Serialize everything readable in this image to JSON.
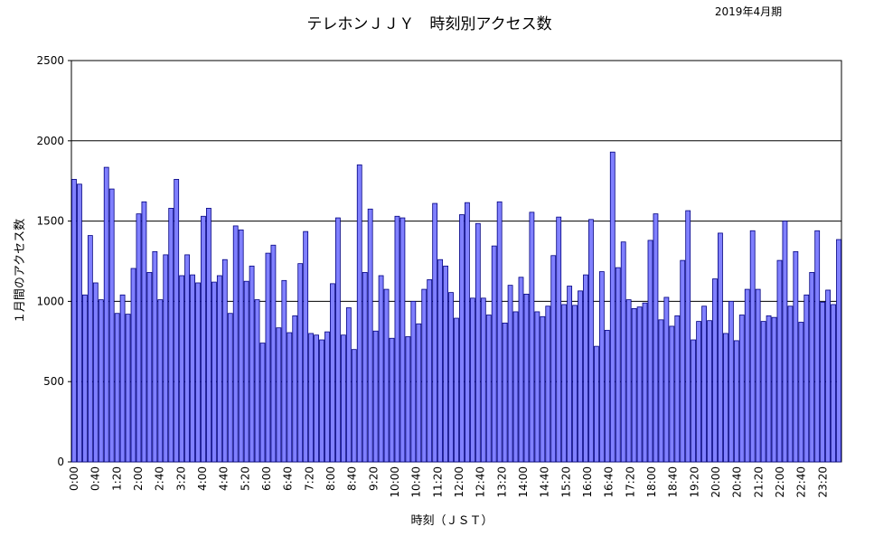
{
  "chart_data": {
    "type": "bar",
    "title": "テレホンＪＪＹ　時刻別アクセス数",
    "subtitle": "2019年4月期",
    "xlabel": "時刻（ＪＳＴ）",
    "ylabel": "１月間のアクセス数",
    "ylim": [
      0,
      2500
    ],
    "y_ticks": [
      "0",
      "500",
      "1000",
      "1500",
      "2000",
      "2500"
    ],
    "gridlines": "horizontal",
    "bar_color": "#8080ff",
    "bar_border_color": "#000080",
    "interval_minutes": 10,
    "x_tick_labels": [
      "0:00",
      "0:40",
      "1:20",
      "2:00",
      "2:40",
      "3:20",
      "4:00",
      "4:40",
      "5:20",
      "6:00",
      "6:40",
      "7:20",
      "8:00",
      "8:40",
      "9:20",
      "10:00",
      "10:40",
      "11:20",
      "12:00",
      "12:40",
      "13:20",
      "14:00",
      "14:40",
      "15:20",
      "16:00",
      "16:40",
      "17:20",
      "18:00",
      "18:40",
      "19:20",
      "20:00",
      "20:40",
      "21:20",
      "22:00",
      "22:40",
      "23:20"
    ],
    "values": [
      1760,
      1730,
      1040,
      1410,
      1115,
      1010,
      1835,
      1700,
      925,
      1040,
      920,
      1205,
      1545,
      1620,
      1180,
      1310,
      1010,
      1290,
      1580,
      1760,
      1160,
      1290,
      1165,
      1115,
      1530,
      1580,
      1120,
      1160,
      1260,
      925,
      1470,
      1445,
      1125,
      1220,
      1010,
      740,
      1300,
      1350,
      835,
      1130,
      805,
      910,
      1235,
      1435,
      800,
      790,
      760,
      810,
      1110,
      1520,
      790,
      960,
      700,
      1850,
      1180,
      1575,
      815,
      1160,
      1075,
      770,
      1530,
      1520,
      780,
      1000,
      860,
      1075,
      1135,
      1610,
      1260,
      1220,
      1055,
      895,
      1540,
      1615,
      1020,
      1485,
      1020,
      915,
      1345,
      1620,
      865,
      1100,
      935,
      1150,
      1045,
      1555,
      935,
      905,
      970,
      1285,
      1525,
      980,
      1095,
      975,
      1065,
      1165,
      1510,
      720,
      1185,
      820,
      1930,
      1210,
      1370,
      1010,
      955,
      965,
      990,
      1380,
      1545,
      885,
      1025,
      845,
      910,
      1255,
      1565,
      760,
      875,
      970,
      880,
      1140,
      1425,
      800,
      1000,
      755,
      915,
      1075,
      1440,
      1075,
      875,
      910,
      900,
      1255,
      1500,
      970,
      1310,
      870,
      1040,
      1180,
      1440,
      995,
      1070,
      980,
      1385
    ]
  }
}
